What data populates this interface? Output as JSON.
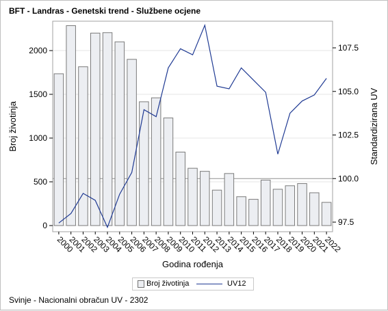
{
  "title": "BFT - Landras - Genetski trend - Službene ocjene",
  "footnote": "Svinje - Nacionalni obračun UV - 2302",
  "legend": {
    "bar_label": "Broj životinja",
    "line_label": "UV12"
  },
  "colors": {
    "bar_fill": "#eceef2",
    "bar_stroke": "#7a7a7a",
    "line": "#1f3a93",
    "grid": "#e6e6e6",
    "refline": "#909090"
  },
  "chart_data": {
    "type": "bar",
    "title": "BFT - Landras - Genetski trend - Službene ocjene",
    "xlabel": "Godina rođenja",
    "ylabel": "Broj životinja",
    "y2label": "Standardizirana UV",
    "categories": [
      "2000",
      "2001",
      "2002",
      "2003",
      "2004",
      "2005",
      "2006",
      "2007",
      "2008",
      "2009",
      "2010",
      "2011",
      "2012",
      "2013",
      "2014",
      "2015",
      "2016",
      "2017",
      "2018",
      "2019",
      "2020",
      "2021",
      "2022"
    ],
    "series": [
      {
        "name": "Broj životinja",
        "type": "bar",
        "axis": "left",
        "values": [
          1735,
          2285,
          1815,
          2200,
          2205,
          2100,
          1900,
          1415,
          1460,
          1230,
          840,
          655,
          620,
          405,
          595,
          330,
          300,
          520,
          415,
          455,
          480,
          375,
          265
        ]
      },
      {
        "name": "UV12",
        "type": "line",
        "axis": "right",
        "values": [
          97.45,
          98.0,
          99.15,
          98.75,
          97.2,
          99.1,
          100.35,
          103.95,
          103.55,
          106.35,
          107.45,
          107.1,
          108.8,
          105.3,
          105.15,
          106.35,
          105.65,
          104.95,
          101.4,
          103.75,
          104.45,
          104.8,
          105.75
        ]
      }
    ],
    "ylim": [
      0,
      2500
    ],
    "yticks": [
      "0",
      "500",
      "1000",
      "1500",
      "2000"
    ],
    "y2lim": [
      97.1,
      109.1
    ],
    "y2ticks": [
      "97.5",
      "100.0",
      "102.5",
      "105.0",
      "107.5"
    ],
    "refline_y2": 100.0,
    "grid": true,
    "legend_position": "bottom-center"
  }
}
